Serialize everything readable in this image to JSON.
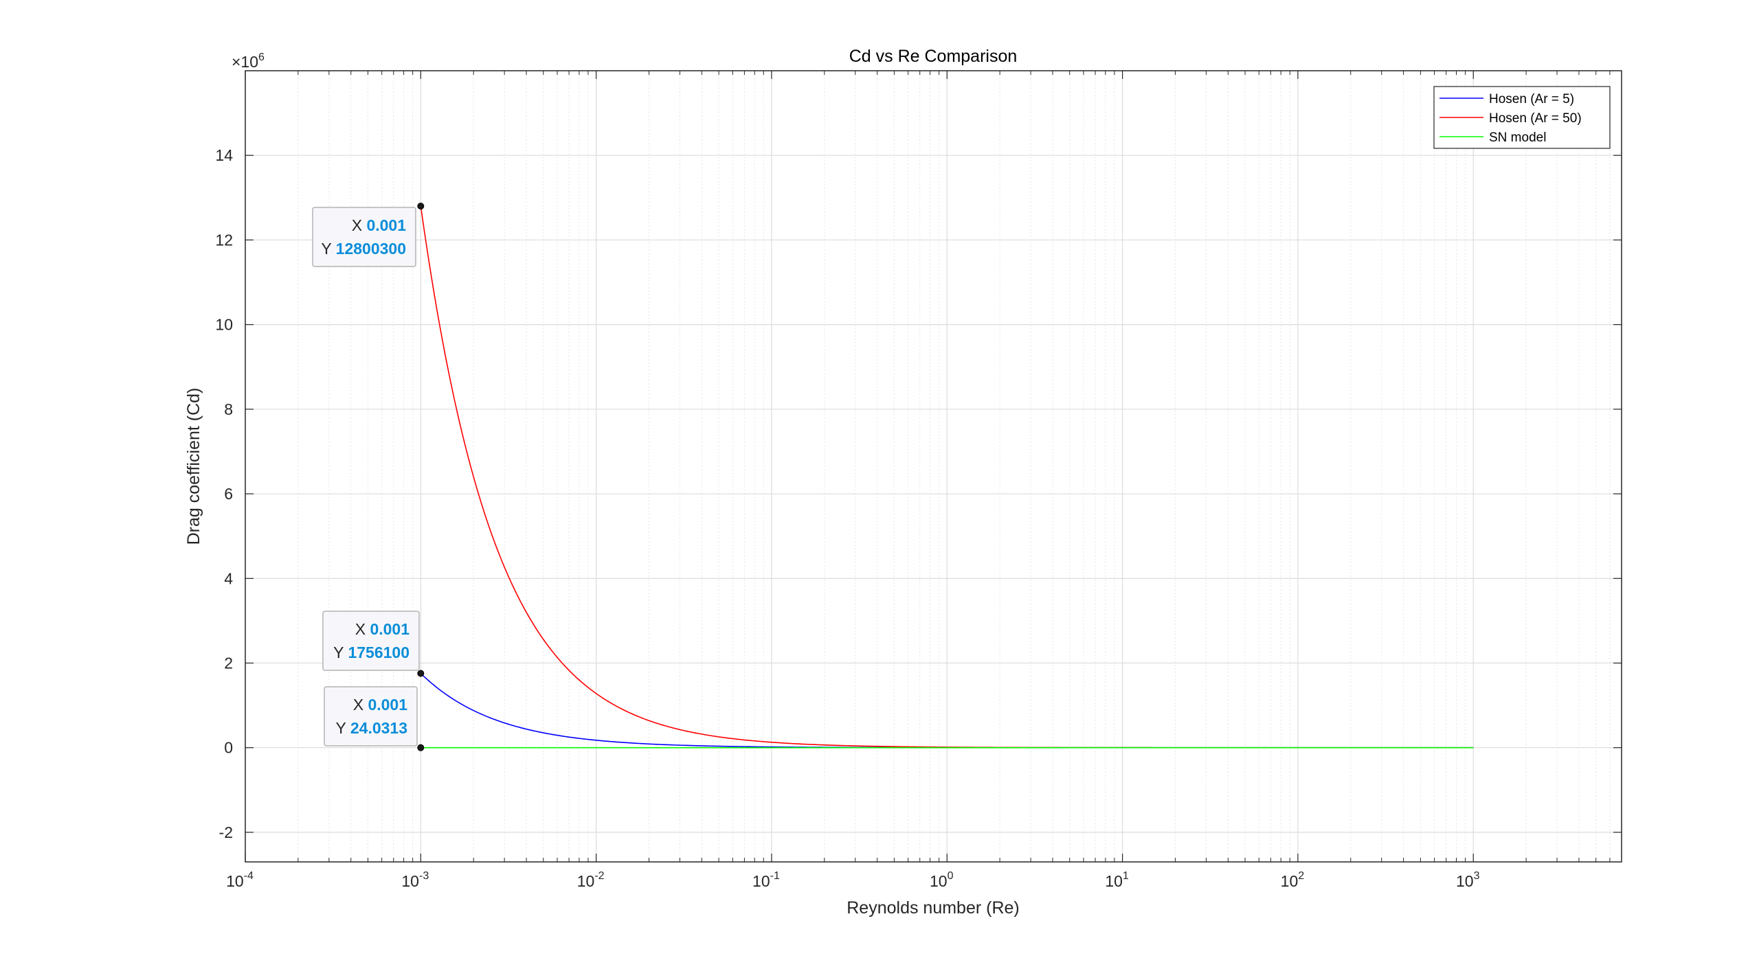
{
  "chart_data": {
    "type": "line",
    "title": "Cd vs Re Comparison",
    "xlabel": "Reynolds number (Re)",
    "ylabel": "Drag coefficient (Cd)",
    "x_scale": "log",
    "xlim": [
      0.0001,
      7000
    ],
    "ylim": [
      -2700000,
      16000000
    ],
    "y_exponent_label": "×10",
    "y_exponent_power": "6",
    "x_ticks": [
      {
        "base": "10",
        "exp": "-4",
        "value": 0.0001
      },
      {
        "base": "10",
        "exp": "-3",
        "value": 0.001
      },
      {
        "base": "10",
        "exp": "-2",
        "value": 0.01
      },
      {
        "base": "10",
        "exp": "-1",
        "value": 0.1
      },
      {
        "base": "10",
        "exp": "0",
        "value": 1
      },
      {
        "base": "10",
        "exp": "1",
        "value": 10
      },
      {
        "base": "10",
        "exp": "2",
        "value": 100
      },
      {
        "base": "10",
        "exp": "3",
        "value": 1000
      }
    ],
    "y_ticks": [
      {
        "label": "-2",
        "value": -2000000
      },
      {
        "label": "0",
        "value": 0
      },
      {
        "label": "2",
        "value": 2000000
      },
      {
        "label": "4",
        "value": 4000000
      },
      {
        "label": "6",
        "value": 6000000
      },
      {
        "label": "8",
        "value": 8000000
      },
      {
        "label": "10",
        "value": 10000000
      },
      {
        "label": "12",
        "value": 12000000
      },
      {
        "label": "14",
        "value": 14000000
      }
    ],
    "grid": true,
    "minor_grid": true,
    "legend_position": "top-right",
    "series": [
      {
        "name": "Hosen (Ar = 5)",
        "color": "#0000ff",
        "x": [
          0.001,
          0.0015,
          0.002,
          0.003,
          0.005,
          0.007,
          0.01,
          0.02,
          0.05,
          0.1,
          1,
          10,
          100,
          1000
        ],
        "y": [
          1756100,
          1170733,
          878050,
          585367,
          351220,
          250871,
          175610,
          87805,
          35122,
          17561,
          1756,
          176,
          18,
          2
        ]
      },
      {
        "name": "Hosen (Ar = 50)",
        "color": "#ff0000",
        "x": [
          0.001,
          0.0015,
          0.002,
          0.003,
          0.005,
          0.007,
          0.01,
          0.02,
          0.05,
          0.1,
          1,
          10,
          100,
          1000
        ],
        "y": [
          12800300,
          8533533,
          6400150,
          4266767,
          2560060,
          1828614,
          1280030,
          640015,
          256006,
          128003,
          12800,
          1280,
          128,
          13
        ]
      },
      {
        "name": "SN model",
        "color": "#00ff00",
        "x": [
          0.001,
          0.01,
          0.1,
          1,
          10,
          100,
          1000
        ],
        "y": [
          24.0313,
          2.4,
          0.5,
          0.4,
          0.4,
          0.4,
          0.4
        ]
      }
    ],
    "datatips": [
      {
        "x_label": "X",
        "x_value": "0.001",
        "y_label": "Y",
        "y_value": "12800300",
        "x": 0.001,
        "y": 12800300
      },
      {
        "x_label": "X",
        "x_value": "0.001",
        "y_label": "Y",
        "y_value": "1756100",
        "x": 0.001,
        "y": 1756100
      },
      {
        "x_label": "X",
        "x_value": "0.001",
        "y_label": "Y",
        "y_value": "24.0313",
        "x": 0.001,
        "y": 24.0313
      }
    ]
  }
}
